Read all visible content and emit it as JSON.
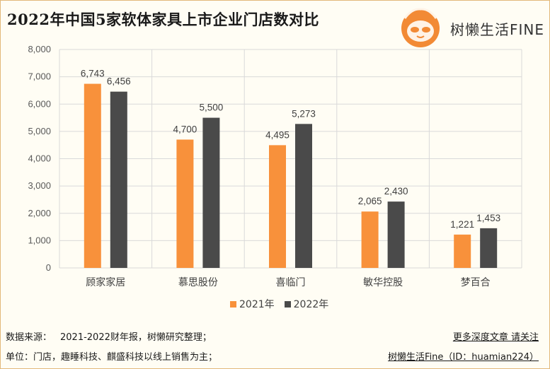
{
  "header": {
    "title": "2022年中国5家软体家具上市企业门店数对比",
    "logo_text": "树懒生活FINE"
  },
  "colors": {
    "series_2021": "#f8913b",
    "series_2022": "#4a4a4a",
    "grid": "#d9d9d9"
  },
  "chart_data": {
    "type": "bar",
    "title": "2022年中国5家软体家具上市企业门店数对比",
    "categories": [
      "顾家家居",
      "慕思股份",
      "喜临门",
      "敏华控股",
      "梦百合"
    ],
    "series": [
      {
        "name": "2021年",
        "values": [
          6743,
          4700,
          4495,
          2065,
          1221
        ],
        "labels": [
          "6,743",
          "4,700",
          "4,495",
          "2,065",
          "1,221"
        ]
      },
      {
        "name": "2022年",
        "values": [
          6456,
          5500,
          5273,
          2430,
          1453
        ],
        "labels": [
          "6,456",
          "5,500",
          "5,273",
          "2,430",
          "1,453"
        ]
      }
    ],
    "ylim": [
      0,
      8000
    ],
    "yticks": [
      0,
      1000,
      2000,
      3000,
      4000,
      5000,
      6000,
      7000,
      8000
    ],
    "ytick_labels": [
      "0",
      "1,000",
      "2,000",
      "3,000",
      "4,000",
      "5,000",
      "6,000",
      "7,000",
      "8,000"
    ],
    "xlabel": "",
    "ylabel": "",
    "grid": true,
    "legend": "bottom-center"
  },
  "footer": {
    "source_label": "数据来源：",
    "source_text": "2021-2022财年报，树懒研究整理；",
    "unit_label": "单位：",
    "unit_text": "门店，趣睡科技、麒盛科技以线上销售为主；",
    "more_text": "更多深度文章 请关注",
    "account_text": "树懒生活Fine（ID：huamian224）"
  }
}
